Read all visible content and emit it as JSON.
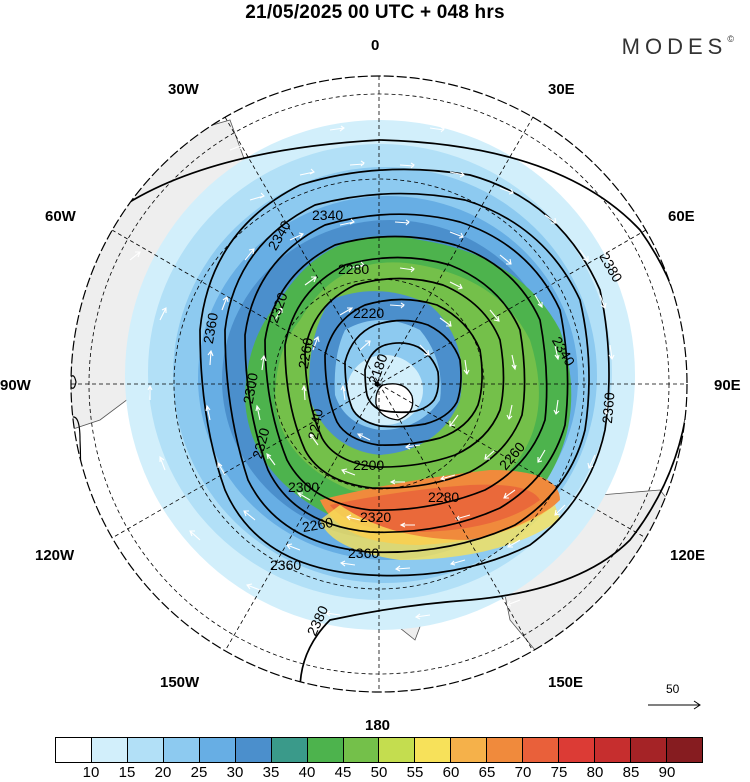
{
  "title": "21/05/2025  00 UTC  + 048 hrs",
  "brand": {
    "name": "MODES",
    "mark": "©"
  },
  "map": {
    "projection": "south-polar-stereographic",
    "longitude_labels": {
      "top": "0",
      "top_right": "30E",
      "right_upper": "60E",
      "right": "90E",
      "right_lower": "120E",
      "bottom_right": "150E",
      "bottom": "180",
      "bottom_left": "150W",
      "left_lower": "120W",
      "left": "90W",
      "left_upper": "60W",
      "top_left": "30W"
    },
    "contour_labels": [
      "2340",
      "2380",
      "2340",
      "2280",
      "2220",
      "2360",
      "2320",
      "2260",
      "2180",
      "2320",
      "2300",
      "2240",
      "2340",
      "2360",
      "2260",
      "2300",
      "2280",
      "2200",
      "2260",
      "2320",
      "2360",
      "2360",
      "2380"
    ],
    "colors": {
      "land": "#eeeeee",
      "contour": "#000000",
      "wind_vector": "#ffffff"
    }
  },
  "reference_vector": {
    "label": "50"
  },
  "colorbar": {
    "ticks": [
      "10",
      "15",
      "20",
      "25",
      "30",
      "35",
      "40",
      "45",
      "50",
      "55",
      "60",
      "65",
      "70",
      "75",
      "80",
      "85",
      "90"
    ],
    "colors": [
      "#ffffff",
      "#d2effb",
      "#b2e0f7",
      "#8dcaf0",
      "#67aee4",
      "#4b8fcc",
      "#3a9a8a",
      "#4db34d",
      "#74c04a",
      "#c4dd4f",
      "#f7e15a",
      "#f5b14a",
      "#f08a3c",
      "#e9603a",
      "#dc3b35",
      "#c62e2e",
      "#a52326",
      "#861c20"
    ]
  }
}
